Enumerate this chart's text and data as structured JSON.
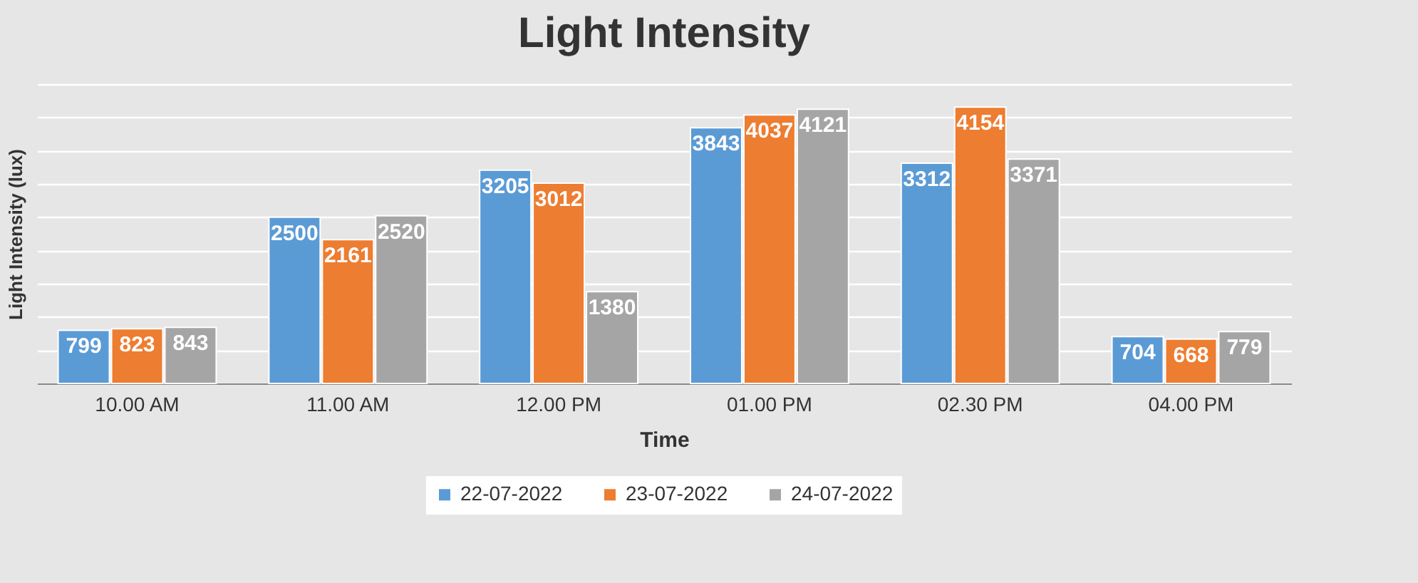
{
  "chart_data": {
    "type": "bar",
    "title": "Light Intensity",
    "xlabel": "Time",
    "ylabel": "Light Intensity (lux)",
    "categories": [
      "10.00 AM",
      "11.00 AM",
      "12.00 PM",
      "01.00 PM",
      "02.30 PM",
      "04.00 PM"
    ],
    "series": [
      {
        "name": "22-07-2022",
        "color": "#5b9bd5",
        "values": [
          799,
          2500,
          3205,
          3843,
          3312,
          704
        ]
      },
      {
        "name": "23-07-2022",
        "color": "#ed7d31",
        "values": [
          823,
          2161,
          3012,
          4037,
          4154,
          668
        ]
      },
      {
        "name": "24-07-2022",
        "color": "#a5a5a5",
        "values": [
          843,
          2520,
          1380,
          4121,
          3371,
          779
        ]
      }
    ],
    "tick_labels": "x",
    "grid": "y",
    "legend": "bottom",
    "data_labels": true
  }
}
